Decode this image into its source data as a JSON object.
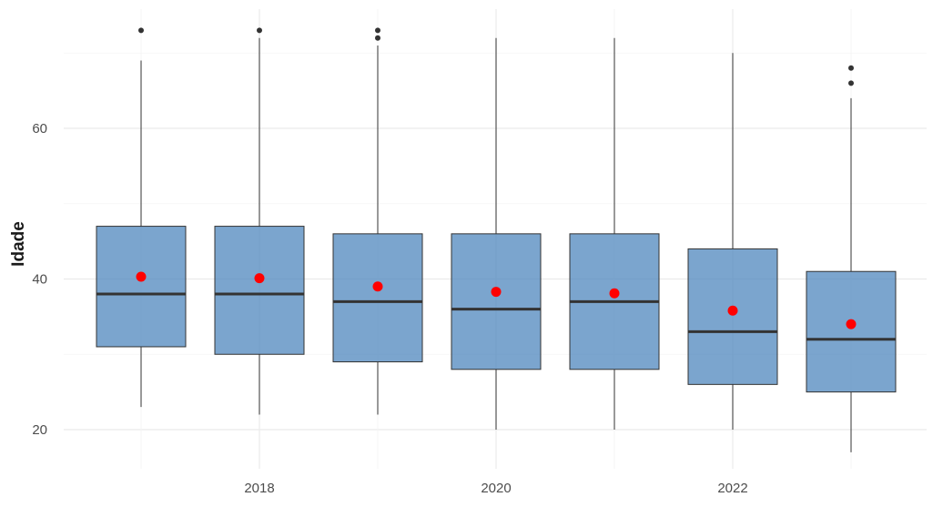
{
  "chart_data": {
    "type": "boxplot",
    "title": "",
    "xlabel": "",
    "ylabel": "Idade",
    "categories": [
      2017,
      2018,
      2019,
      2020,
      2021,
      2022,
      2023
    ],
    "x_ticks": [
      2018,
      2020,
      2022
    ],
    "y_ticks": [
      20,
      40,
      60
    ],
    "ylim": [
      15,
      75
    ],
    "xlim": [
      2016.4,
      2023.6
    ],
    "grid": true,
    "box_fill": "#4f87bd",
    "box_edge": "#333333",
    "mean_color": "#ff0000",
    "outlier_color": "#333333",
    "boxes": [
      {
        "x": 2017,
        "whisker_low": 23,
        "q1": 31,
        "median": 38,
        "q3": 47,
        "whisker_high": 69,
        "mean": 40.3,
        "outliers": [
          73
        ]
      },
      {
        "x": 2018,
        "whisker_low": 22,
        "q1": 30,
        "median": 38,
        "q3": 47,
        "whisker_high": 72,
        "mean": 40.1,
        "outliers": [
          73
        ]
      },
      {
        "x": 2019,
        "whisker_low": 22,
        "q1": 29,
        "median": 37,
        "q3": 46,
        "whisker_high": 71,
        "mean": 39.0,
        "outliers": [
          72,
          73
        ]
      },
      {
        "x": 2020,
        "whisker_low": 20,
        "q1": 28,
        "median": 36,
        "q3": 46,
        "whisker_high": 72,
        "mean": 38.3,
        "outliers": []
      },
      {
        "x": 2021,
        "whisker_low": 20,
        "q1": 28,
        "median": 37,
        "q3": 46,
        "whisker_high": 72,
        "mean": 38.1,
        "outliers": []
      },
      {
        "x": 2022,
        "whisker_low": 20,
        "q1": 26,
        "median": 33,
        "q3": 44,
        "whisker_high": 70,
        "mean": 35.8,
        "outliers": []
      },
      {
        "x": 2023,
        "whisker_low": 17,
        "q1": 25,
        "median": 32,
        "q3": 41,
        "whisker_high": 64,
        "mean": 34.0,
        "outliers": [
          66,
          68
        ]
      }
    ]
  }
}
